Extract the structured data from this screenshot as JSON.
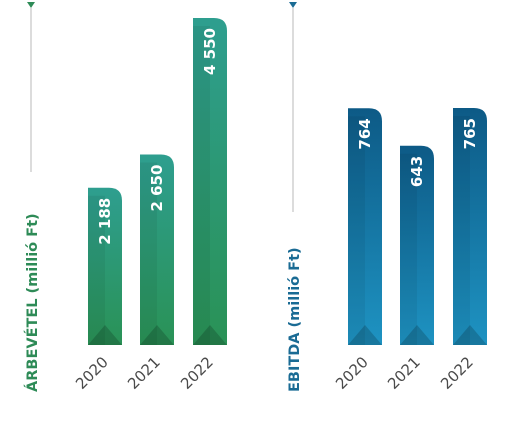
{
  "chart_data": [
    {
      "type": "bar",
      "ylabel": "ÁRBEVÉTEL (millió Ft)",
      "categories": [
        "2020",
        "2021",
        "2022"
      ],
      "values": [
        2188,
        2650,
        4550
      ],
      "value_labels": [
        "2 188",
        "2 650",
        "4 550"
      ],
      "color_top": "#2e9e8f",
      "color_bottom": "#2a9256",
      "label_color": "#2e8b57"
    },
    {
      "type": "bar",
      "ylabel": "EBITDA (millió Ft)",
      "categories": [
        "2020",
        "2021",
        "2022"
      ],
      "values": [
        764,
        643,
        765
      ],
      "value_labels": [
        "764",
        "643",
        "765"
      ],
      "color_top": "#0d5a86",
      "color_bottom": "#1e93c2",
      "label_color": "#1a6b94"
    }
  ]
}
